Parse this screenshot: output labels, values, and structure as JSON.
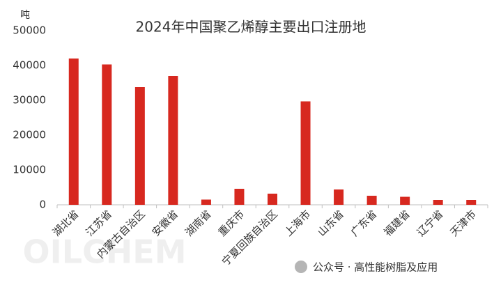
{
  "chart_data": {
    "type": "bar",
    "title": "2024年中国聚乙烯醇主要出口注册地",
    "y_label": "吨",
    "categories": [
      "湖北省",
      "江苏省",
      "内蒙古自治区",
      "安徽省",
      "湖南省",
      "重庆市",
      "宁夏回族自治区",
      "上海市",
      "山东省",
      "广东省",
      "福建省",
      "辽宁省",
      "天津市"
    ],
    "values": [
      42000,
      40300,
      33800,
      37000,
      1500,
      4600,
      3200,
      29700,
      4400,
      2600,
      2300,
      1400,
      1400
    ],
    "color": "#d7281f",
    "ylim": [
      0,
      50000
    ],
    "yticks": [
      0,
      10000,
      20000,
      30000,
      40000,
      50000
    ],
    "grid": false,
    "annotations": [
      "OILCHEM",
      "公众号 · 高性能树脂及应用"
    ]
  }
}
